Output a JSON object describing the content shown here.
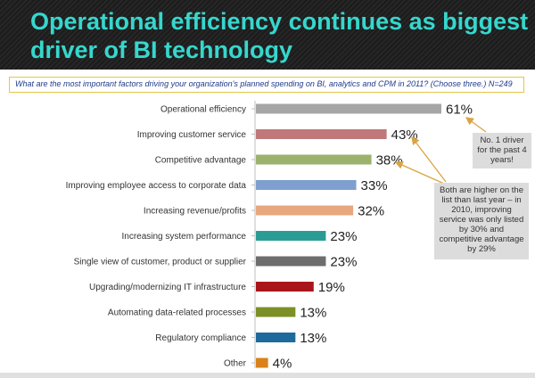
{
  "title": "Operational efficiency continues as biggest driver of BI technology",
  "question": "What are the most important factors driving your organization's planned spending on BI, analytics and CPM in 2011? (Choose three.) N=249",
  "callouts": {
    "first": "No. 1 driver for the past 4 years!",
    "second": "Both are higher on the list than last year – in 2010, improving service was only listed by 30% and competitive advantage by 29%"
  },
  "colors": {
    "title": "#36d7cd",
    "header_bg": "#222222",
    "question_border": "#e6c44a",
    "question_text": "#1f3a8a",
    "arrow": "#d9a441"
  },
  "chart_data": {
    "type": "bar",
    "orientation": "horizontal",
    "categories": [
      "Operational efficiency",
      "Improving customer service",
      "Competitive advantage",
      "Improving employee access to corporate data",
      "Increasing revenue/profits",
      "Increasing system performance",
      "Single view of customer, product or supplier",
      "Upgrading/modernizing IT infrastructure",
      "Automating data-related processes",
      "Regulatory compliance",
      "Other"
    ],
    "values": [
      61,
      43,
      38,
      33,
      32,
      23,
      23,
      19,
      13,
      13,
      4
    ],
    "value_labels": [
      "61%",
      "43%",
      "38%",
      "33%",
      "32%",
      "23%",
      "23%",
      "19%",
      "13%",
      "13%",
      "4%"
    ],
    "bar_colors": [
      "#a6a6a6",
      "#c0787a",
      "#9bb26c",
      "#7e9fcf",
      "#e9a77e",
      "#2a9c95",
      "#6d6d6d",
      "#a8161b",
      "#7c9026",
      "#1f6a9d",
      "#d9821a"
    ],
    "xlim": [
      0,
      61
    ],
    "grid": false,
    "legend": "none"
  }
}
